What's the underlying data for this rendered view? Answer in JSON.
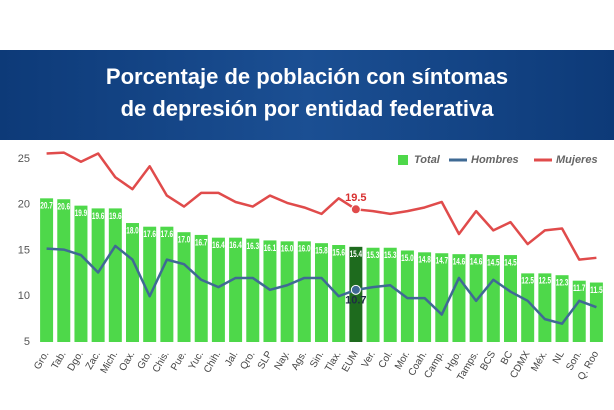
{
  "chart_data": {
    "type": "bar_line",
    "title": [
      "Porcentaje de población con síntomas",
      "de depresión por entidad federativa"
    ],
    "categories": [
      "Gro.",
      "Tab.",
      "Dgo.",
      "Zac.",
      "Mich.",
      "Oax.",
      "Gto.",
      "Chis.",
      "Pue.",
      "Yuc.",
      "Chih.",
      "Jal.",
      "Qro.",
      "SLP",
      "Nay.",
      "Ags.",
      "Sin.",
      "Tlax.",
      "EUM",
      "Ver.",
      "Col.",
      "Mor.",
      "Coah.",
      "Camp.",
      "Hgo.",
      "Tamps.",
      "BCS",
      "BC",
      "CDMX",
      "Méx.",
      "NL",
      "Son.",
      "Q. Roo"
    ],
    "series": [
      {
        "name": "Total",
        "color": "#4ed84a",
        "highlight_color": "#1e6b1e",
        "kind": "bar",
        "values": [
          20.7,
          20.6,
          19.9,
          19.6,
          19.6,
          18.0,
          17.6,
          17.6,
          17.0,
          16.7,
          16.4,
          16.4,
          16.3,
          16.1,
          16.0,
          16.0,
          15.8,
          15.6,
          15.4,
          15.3,
          15.3,
          15.0,
          14.8,
          14.7,
          14.6,
          14.6,
          14.5,
          14.5,
          12.5,
          12.5,
          12.3,
          11.7,
          11.5
        ],
        "value_labels": [
          "20.7",
          "20.6",
          "19.9",
          "19.6",
          "19.6",
          "18.0",
          "17.6",
          "17.6",
          "17.0",
          "16.7",
          "16.4",
          "16.4",
          "16.3",
          "16.1",
          "16.0",
          "16.0",
          "15.8",
          "15.6",
          "15.4",
          "15.3",
          "15.3",
          "15.0",
          "14.8",
          "14.7",
          "14.6",
          "14.6",
          "14.5",
          "14.5",
          "12.5",
          "12.5",
          "12.3",
          "11.7",
          "11.5"
        ]
      },
      {
        "name": "Hombres",
        "color": "#3f6a94",
        "kind": "line",
        "values": [
          15.2,
          15.1,
          14.5,
          12.6,
          15.5,
          14.0,
          10.0,
          14.0,
          13.5,
          11.8,
          11.0,
          12.0,
          12.0,
          10.7,
          11.2,
          12.0,
          12.0,
          10.0,
          10.7,
          11.0,
          11.2,
          9.8,
          9.8,
          8.0,
          12.0,
          9.5,
          11.8,
          10.5,
          9.5,
          7.5,
          7.0,
          9.5,
          8.8
        ]
      },
      {
        "name": "Mujeres",
        "color": "#e04b4b",
        "kind": "line",
        "values": [
          25.6,
          25.7,
          24.7,
          25.6,
          23.0,
          21.7,
          24.2,
          21.0,
          19.8,
          21.3,
          21.3,
          20.3,
          19.8,
          21.0,
          20.2,
          19.7,
          19.0,
          20.7,
          19.5,
          19.3,
          19.0,
          19.3,
          19.7,
          20.3,
          16.8,
          19.3,
          17.2,
          18.1,
          15.7,
          17.2,
          17.4,
          14.0,
          14.2
        ]
      }
    ],
    "highlight": "EUM",
    "ylim": [
      5,
      26.2
    ],
    "yticks": [
      5,
      10,
      15,
      20,
      25
    ],
    "grid": false,
    "legend": "top-right"
  }
}
